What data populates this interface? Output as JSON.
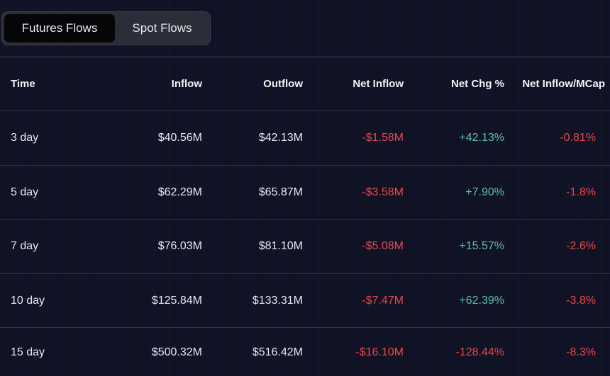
{
  "tabs": {
    "futures": "Futures Flows",
    "spot": "Spot Flows"
  },
  "columns": {
    "time": "Time",
    "inflow": "Inflow",
    "outflow": "Outflow",
    "net_inflow": "Net Inflow",
    "net_chg": "Net Chg %",
    "net_mcap": "Net Inflow/MCap"
  },
  "rows": [
    {
      "time": "3 day",
      "inflow": "$40.56M",
      "outflow": "$42.13M",
      "net_inflow": "-$1.58M",
      "net_chg": "+42.13%",
      "net_mcap": "-0.81%"
    },
    {
      "time": "5 day",
      "inflow": "$62.29M",
      "outflow": "$65.87M",
      "net_inflow": "-$3.58M",
      "net_chg": "+7.90%",
      "net_mcap": "-1.8%"
    },
    {
      "time": "7 day",
      "inflow": "$76.03M",
      "outflow": "$81.10M",
      "net_inflow": "-$5.08M",
      "net_chg": "+15.57%",
      "net_mcap": "-2.6%"
    },
    {
      "time": "10 day",
      "inflow": "$125.84M",
      "outflow": "$133.31M",
      "net_inflow": "-$7.47M",
      "net_chg": "+62.39%",
      "net_mcap": "-3.8%"
    },
    {
      "time": "15 day",
      "inflow": "$500.32M",
      "outflow": "$516.42M",
      "net_inflow": "-$16.10M",
      "net_chg": "-128.44%",
      "net_mcap": "-8.3%"
    }
  ],
  "colors": {
    "negative": "#e5484d",
    "positive": "#5fbfa7",
    "background": "#0f1124"
  }
}
